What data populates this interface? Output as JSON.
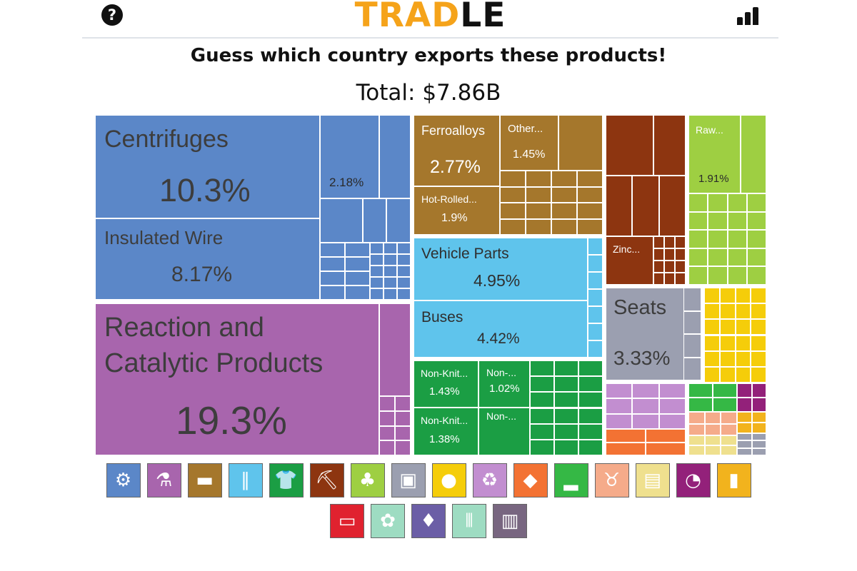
{
  "header": {
    "logo_part1": "TRAD",
    "logo_part2": "LE",
    "help_icon": "question-circle-icon",
    "stats_icon": "bar-chart-icon"
  },
  "prompt": "Guess which country exports these products!",
  "total": "Total: $7.86B",
  "colors": {
    "machines": "#5b87c8",
    "chemicals": "#a865ad",
    "metals": "#a5772c",
    "transport": "#5fc4ec",
    "textiles": "#1b9e44",
    "minerals": "#8d3510",
    "vegetables": "#9ecf42",
    "misc": "#9b9fb0",
    "foodstuffs": "#f5cd0a"
  },
  "labels": [
    {
      "text": "Centrifuges"
    },
    {
      "text": "10.3%"
    },
    {
      "text": "Insulated Wire"
    },
    {
      "text": "8.17%"
    },
    {
      "text": "2.18%"
    },
    {
      "text": "Reaction and"
    },
    {
      "text": "Catalytic Products"
    },
    {
      "text": "19.3%"
    },
    {
      "text": "Ferroalloys"
    },
    {
      "text": "2.77%"
    },
    {
      "text": "Other..."
    },
    {
      "text": "1.45%"
    },
    {
      "text": "Hot-Rolled..."
    },
    {
      "text": "1.9%"
    },
    {
      "text": "Vehicle Parts"
    },
    {
      "text": "4.95%"
    },
    {
      "text": "Buses"
    },
    {
      "text": "4.42%"
    },
    {
      "text": "Non-Knit..."
    },
    {
      "text": "1.43%"
    },
    {
      "text": "Non-..."
    },
    {
      "text": "1.02%"
    },
    {
      "text": "Non-Knit..."
    },
    {
      "text": "1.38%"
    },
    {
      "text": "Non-..."
    },
    {
      "text": "Zinc..."
    },
    {
      "text": "Raw..."
    },
    {
      "text": "1.91%"
    },
    {
      "text": "Seats"
    },
    {
      "text": "3.33%"
    }
  ],
  "categories": [
    {
      "icon": "gear-icon",
      "color": "#5b87c8"
    },
    {
      "icon": "flask-icon",
      "color": "#a865ad"
    },
    {
      "icon": "anvil-icon",
      "color": "#a5772c"
    },
    {
      "icon": "road-icon",
      "color": "#5fc4ec"
    },
    {
      "icon": "tshirt-icon",
      "color": "#1b9e44"
    },
    {
      "icon": "pickaxe-icon",
      "color": "#8d3510"
    },
    {
      "icon": "wheat-icon",
      "color": "#9ecf42"
    },
    {
      "icon": "box-icon",
      "color": "#9b9fb0"
    },
    {
      "icon": "tomato-icon",
      "color": "#f5cd0a"
    },
    {
      "icon": "recycle-icon",
      "color": "#c28ed0"
    },
    {
      "icon": "rock-icon",
      "color": "#f37233"
    },
    {
      "icon": "shoe-icon",
      "color": "#35b845"
    },
    {
      "icon": "cow-icon",
      "color": "#f5ab8a"
    },
    {
      "icon": "scroll-icon",
      "color": "#efe08e"
    },
    {
      "icon": "gauge-icon",
      "color": "#93217a"
    },
    {
      "icon": "bottle-icon",
      "color": "#f2b31d"
    },
    {
      "icon": "log-icon",
      "color": "#e0222f"
    },
    {
      "icon": "leather-icon",
      "color": "#9edcc2"
    },
    {
      "icon": "diamond-icon",
      "color": "#6b5ea6"
    },
    {
      "icon": "bullets-icon",
      "color": "#9edcc2"
    },
    {
      "icon": "easel-icon",
      "color": "#786680"
    }
  ]
}
